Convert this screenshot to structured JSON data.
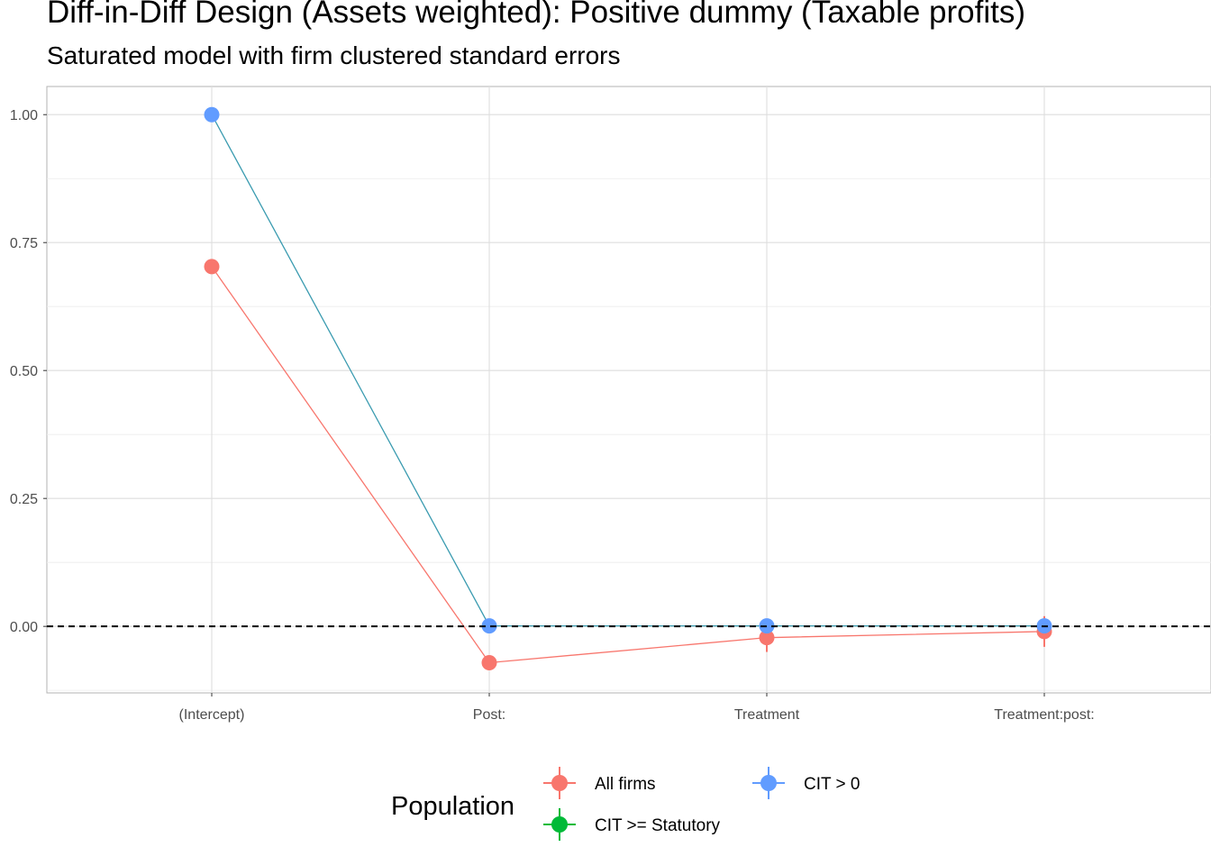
{
  "title": "Diff-in-Diff Design (Assets weighted): Positive dummy (Taxable profits)",
  "subtitle": "Saturated model with firm clustered standard errors",
  "chart_data": {
    "type": "scatter",
    "categories": [
      "(Intercept)",
      "Post:",
      "Treatment",
      "Treatment:post:"
    ],
    "ylim": [
      -0.13,
      1.055
    ],
    "yticks": [
      0.0,
      0.25,
      0.5,
      0.75,
      1.0
    ],
    "ytick_labels": [
      "0.00",
      "0.25",
      "0.50",
      "0.75",
      "1.00"
    ],
    "grid": true,
    "reference_line": 0,
    "legend_title": "Population",
    "legend_position": "bottom",
    "series": [
      {
        "name": "All firms",
        "color": "#F8766D",
        "values": [
          0.703,
          -0.071,
          -0.022,
          -0.01
        ],
        "errors": [
          0.004,
          0.006,
          0.028,
          0.03
        ]
      },
      {
        "name": "CIT >= Statutory",
        "color": "#00BA38",
        "values": [
          null,
          null,
          null,
          null
        ],
        "errors": [
          0,
          0,
          0,
          0
        ]
      },
      {
        "name": "CIT > 0",
        "color": "#619CFF",
        "values": [
          1.0,
          0.001,
          0.001,
          0.001
        ],
        "errors": [
          0.0,
          0.001,
          0.001,
          0.001
        ]
      }
    ]
  }
}
